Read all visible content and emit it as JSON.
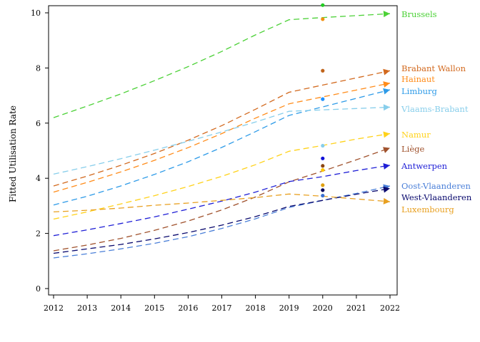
{
  "chart_data": {
    "type": "line",
    "title": "",
    "xlabel": "",
    "ylabel": "Fitted Utilisation Rate",
    "x": [
      2012,
      2013,
      2014,
      2015,
      2016,
      2017,
      2018,
      2019,
      2020,
      2021,
      2022
    ],
    "xlim": [
      2012,
      2022
    ],
    "ylim": [
      0,
      10
    ],
    "yticks": [
      0,
      2,
      4,
      6,
      8,
      10
    ],
    "grid": false,
    "legend": "inline labels at right end of each line",
    "line_style": "dashed",
    "series": [
      {
        "name": "Brussels",
        "color": "#4CD137",
        "values": [
          6.2,
          6.62,
          7.06,
          7.54,
          8.05,
          8.6,
          9.2,
          9.75,
          9.83,
          9.9,
          9.97
        ],
        "point_2020": 10.28,
        "point_2020_color": "#22CC22"
      },
      {
        "name": "Brabant Wallon",
        "color": "#D2691E",
        "values": [
          3.72,
          4.08,
          4.47,
          4.9,
          5.38,
          5.91,
          6.5,
          7.12,
          7.38,
          7.64,
          7.9
        ],
        "point_2020": 7.9,
        "point_2020_color": "#C0631A"
      },
      {
        "name": "Hainaut",
        "color": "#FF8C1A",
        "values": [
          3.5,
          3.85,
          4.23,
          4.65,
          5.11,
          5.62,
          6.18,
          6.7,
          6.95,
          7.2,
          7.45
        ],
        "point_2020": 9.77,
        "point_2020_color": "#F29010"
      },
      {
        "name": "Limburg",
        "color": "#2E9BE8",
        "values": [
          3.03,
          3.35,
          3.72,
          4.14,
          4.6,
          5.12,
          5.69,
          6.28,
          6.59,
          6.9,
          7.21
        ],
        "point_2020": 6.87,
        "point_2020_color": "#1E90FF"
      },
      {
        "name": "Vlaams-Brabant",
        "color": "#87CEEB",
        "values": [
          4.15,
          4.42,
          4.71,
          5.02,
          5.34,
          5.68,
          6.04,
          6.43,
          6.48,
          6.53,
          6.58
        ],
        "point_2020": 5.18,
        "point_2020_color": "#87CEEB"
      },
      {
        "name": "Namur",
        "color": "#FFD21A",
        "values": [
          2.52,
          2.78,
          3.07,
          3.37,
          3.7,
          4.07,
          4.49,
          4.98,
          5.19,
          5.42,
          5.62
        ],
        "point_2020": 4.3,
        "point_2020_color": "#FFC800"
      },
      {
        "name": "Liège",
        "color": "#A0522D",
        "values": [
          1.37,
          1.58,
          1.82,
          2.11,
          2.45,
          2.85,
          3.32,
          3.87,
          4.26,
          4.67,
          5.1
        ],
        "point_2020": 4.45,
        "point_2020_color": "#8B4513"
      },
      {
        "name": "Antwerpen",
        "color": "#1F1FD6",
        "values": [
          1.92,
          2.13,
          2.36,
          2.6,
          2.88,
          3.17,
          3.5,
          3.88,
          4.06,
          4.28,
          4.47
        ],
        "point_2020": 4.72,
        "point_2020_color": "#1010D8"
      },
      {
        "name": "Oost-Vlaanderen",
        "color": "#4A7FD8",
        "values": [
          1.11,
          1.26,
          1.44,
          1.64,
          1.88,
          2.18,
          2.53,
          2.94,
          3.2,
          3.45,
          3.72
        ],
        "point_2020": 3.37,
        "point_2020_color": "#3A6FD0"
      },
      {
        "name": "West-Vlaanderen",
        "color": "#0A0A6E",
        "values": [
          1.28,
          1.44,
          1.6,
          1.8,
          2.03,
          2.3,
          2.61,
          2.98,
          3.2,
          3.42,
          3.63
        ],
        "point_2020": 3.57,
        "point_2020_color": "#06065E"
      },
      {
        "name": "Luxembourg",
        "color": "#E8A020",
        "values": [
          2.78,
          2.84,
          2.92,
          3.02,
          3.1,
          3.2,
          3.3,
          3.43,
          3.35,
          3.25,
          3.15
        ],
        "point_2020": 3.75,
        "point_2020_color": "#E0A010"
      }
    ]
  }
}
